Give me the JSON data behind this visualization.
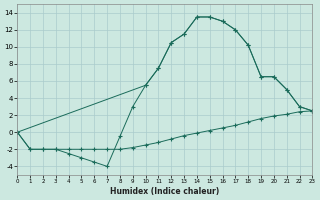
{
  "background_color": "#cce8e0",
  "grid_color": "#aacccc",
  "line_color": "#1a6b5a",
  "xlabel": "Humidex (Indice chaleur)",
  "xlim": [
    0,
    23
  ],
  "ylim": [
    -5,
    15
  ],
  "xticks": [
    0,
    1,
    2,
    3,
    4,
    5,
    6,
    7,
    8,
    9,
    10,
    11,
    12,
    13,
    14,
    15,
    16,
    17,
    18,
    19,
    20,
    21,
    22,
    23
  ],
  "yticks": [
    -4,
    -2,
    0,
    2,
    4,
    6,
    8,
    10,
    12,
    14
  ],
  "curve1_x": [
    0,
    1,
    2,
    3,
    4,
    5,
    6,
    7,
    8,
    9,
    10,
    11,
    12,
    13,
    14,
    15,
    16,
    17,
    18,
    19,
    20,
    21,
    22,
    23
  ],
  "curve1_y": [
    0,
    -2,
    -2,
    -2,
    -2,
    -2,
    -2,
    -2,
    -2,
    -1.8,
    -1.5,
    -1.2,
    -0.8,
    -0.4,
    -0.1,
    0.2,
    0.5,
    0.8,
    1.2,
    1.6,
    1.9,
    2.1,
    2.4,
    2.5
  ],
  "curve2_x": [
    0,
    1,
    2,
    3,
    4,
    5,
    6,
    7,
    8,
    9,
    10,
    11,
    12,
    13,
    14,
    15,
    16,
    17,
    18,
    19,
    20,
    21,
    22,
    23
  ],
  "curve2_y": [
    0,
    -2,
    -2,
    -2,
    -2.5,
    -3,
    -3.5,
    -4,
    -0.5,
    3,
    5.5,
    7.5,
    10.5,
    11.5,
    13.5,
    13.5,
    13,
    12,
    10.2,
    6.5,
    6.5,
    5,
    3,
    2.5
  ],
  "curve3_x": [
    0,
    10,
    11,
    12,
    13,
    14,
    15,
    16,
    17,
    18,
    19,
    20,
    21,
    22,
    23
  ],
  "curve3_y": [
    0,
    5.5,
    7.5,
    10.5,
    11.5,
    13.5,
    13.5,
    13,
    12,
    10.2,
    6.5,
    6.5,
    5,
    3,
    2.5
  ]
}
